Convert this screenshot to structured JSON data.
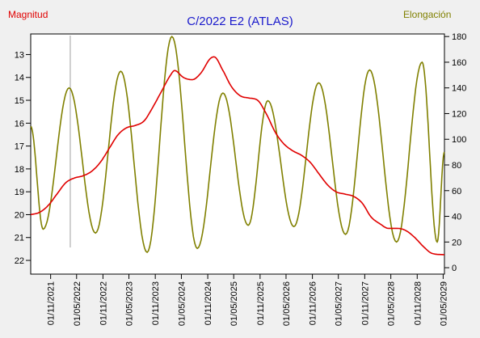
{
  "colors": {
    "magnitude": "#e00000",
    "elongation": "#808000",
    "title": "#1a1acc",
    "marker": "#a0a0a0",
    "axis": "#000000",
    "plot_bg": "#ffffff",
    "page_bg": "#f0f0f0"
  },
  "chart_data": {
    "type": "line",
    "title": "C/2022 E2 (ATLAS)",
    "left_axis_label": "Magnitud",
    "right_axis_label": "Elongación",
    "x_range": [
      "2021-06-15",
      "2029-05-10"
    ],
    "x_ticks": [
      "01/11/2021",
      "01/05/2022",
      "01/11/2022",
      "01/05/2023",
      "01/11/2023",
      "01/05/2024",
      "01/11/2024",
      "01/05/2025",
      "01/11/2025",
      "01/05/2026",
      "01/11/2026",
      "01/05/2027",
      "01/11/2027",
      "01/05/2028",
      "01/11/2028",
      "01/05/2029"
    ],
    "left_axis": {
      "ylim": [
        12.1,
        22.6
      ],
      "inverted": true,
      "ticks": [
        13,
        14,
        15,
        16,
        17,
        18,
        19,
        20,
        21,
        22
      ]
    },
    "right_axis": {
      "ylim": [
        -5,
        182
      ],
      "ticks": [
        0,
        20,
        40,
        60,
        80,
        100,
        120,
        140,
        160,
        180
      ]
    },
    "marker_date": "2022-03-18",
    "series": [
      {
        "name": "Magnitud",
        "axis": "left",
        "points": [
          [
            "2021-06-15",
            20.0
          ],
          [
            "2021-08-15",
            19.9
          ],
          [
            "2021-10-15",
            19.6
          ],
          [
            "2021-12-15",
            19.1
          ],
          [
            "2022-02-15",
            18.6
          ],
          [
            "2022-04-15",
            18.4
          ],
          [
            "2022-06-15",
            18.3
          ],
          [
            "2022-08-15",
            18.1
          ],
          [
            "2022-10-15",
            17.7
          ],
          [
            "2022-12-15",
            17.1
          ],
          [
            "2023-02-15",
            16.5
          ],
          [
            "2023-04-15",
            16.2
          ],
          [
            "2023-06-15",
            16.1
          ],
          [
            "2023-08-15",
            15.9
          ],
          [
            "2023-10-15",
            15.3
          ],
          [
            "2023-12-15",
            14.6
          ],
          [
            "2024-02-15",
            13.9
          ],
          [
            "2024-03-15",
            13.7
          ],
          [
            "2024-05-15",
            14.0
          ],
          [
            "2024-07-15",
            14.1
          ],
          [
            "2024-09-15",
            13.8
          ],
          [
            "2024-11-15",
            13.2
          ],
          [
            "2024-12-15",
            13.1
          ],
          [
            "2025-02-15",
            13.7
          ],
          [
            "2025-04-15",
            14.4
          ],
          [
            "2025-06-15",
            14.8
          ],
          [
            "2025-08-15",
            14.9
          ],
          [
            "2025-10-15",
            15.0
          ],
          [
            "2025-12-15",
            15.6
          ],
          [
            "2026-02-15",
            16.4
          ],
          [
            "2026-04-15",
            16.9
          ],
          [
            "2026-06-15",
            17.2
          ],
          [
            "2026-08-15",
            17.4
          ],
          [
            "2026-10-15",
            17.7
          ],
          [
            "2026-12-15",
            18.2
          ],
          [
            "2027-02-15",
            18.7
          ],
          [
            "2027-04-15",
            19.0
          ],
          [
            "2027-06-15",
            19.1
          ],
          [
            "2027-08-15",
            19.2
          ],
          [
            "2027-10-15",
            19.5
          ],
          [
            "2027-12-15",
            20.1
          ],
          [
            "2028-02-15",
            20.4
          ],
          [
            "2028-04-15",
            20.6
          ],
          [
            "2028-06-15",
            20.6
          ],
          [
            "2028-08-15",
            20.7
          ],
          [
            "2028-10-15",
            21.0
          ],
          [
            "2028-12-15",
            21.4
          ],
          [
            "2029-02-15",
            21.7
          ],
          [
            "2029-05-10",
            21.75
          ]
        ]
      },
      {
        "name": "Elongación",
        "axis": "right",
        "points": [
          [
            "2021-06-15",
            110
          ],
          [
            "2021-09-10",
            30
          ],
          [
            "2022-03-10",
            140
          ],
          [
            "2022-09-10",
            27
          ],
          [
            "2023-03-05",
            153
          ],
          [
            "2023-09-05",
            12
          ],
          [
            "2024-02-25",
            180
          ],
          [
            "2024-08-20",
            15
          ],
          [
            "2025-02-15",
            136
          ],
          [
            "2025-08-10",
            33
          ],
          [
            "2025-12-25",
            130
          ],
          [
            "2026-06-25",
            32
          ],
          [
            "2026-12-15",
            144
          ],
          [
            "2027-06-20",
            26
          ],
          [
            "2027-12-05",
            154
          ],
          [
            "2028-06-10",
            20
          ],
          [
            "2028-12-05",
            160
          ],
          [
            "2029-03-20",
            20
          ],
          [
            "2029-05-10",
            90
          ]
        ]
      }
    ]
  }
}
